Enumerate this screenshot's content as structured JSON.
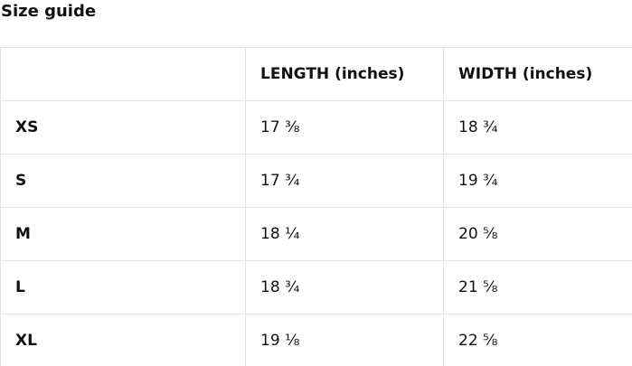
{
  "page": {
    "title": "Size guide"
  },
  "size_table": {
    "columns": [
      "",
      "LENGTH (inches)",
      "WIDTH (inches)"
    ],
    "rows": [
      {
        "size": "XS",
        "length": "17 ⅜",
        "width": "18 ¾"
      },
      {
        "size": "S",
        "length": "17 ¾",
        "width": "19 ¾"
      },
      {
        "size": "M",
        "length": "18 ¼",
        "width": "20 ⅝"
      },
      {
        "size": "L",
        "length": "18 ¾",
        "width": "21 ⅝"
      },
      {
        "size": "XL",
        "length": "19 ⅛",
        "width": "22 ⅝"
      }
    ]
  }
}
